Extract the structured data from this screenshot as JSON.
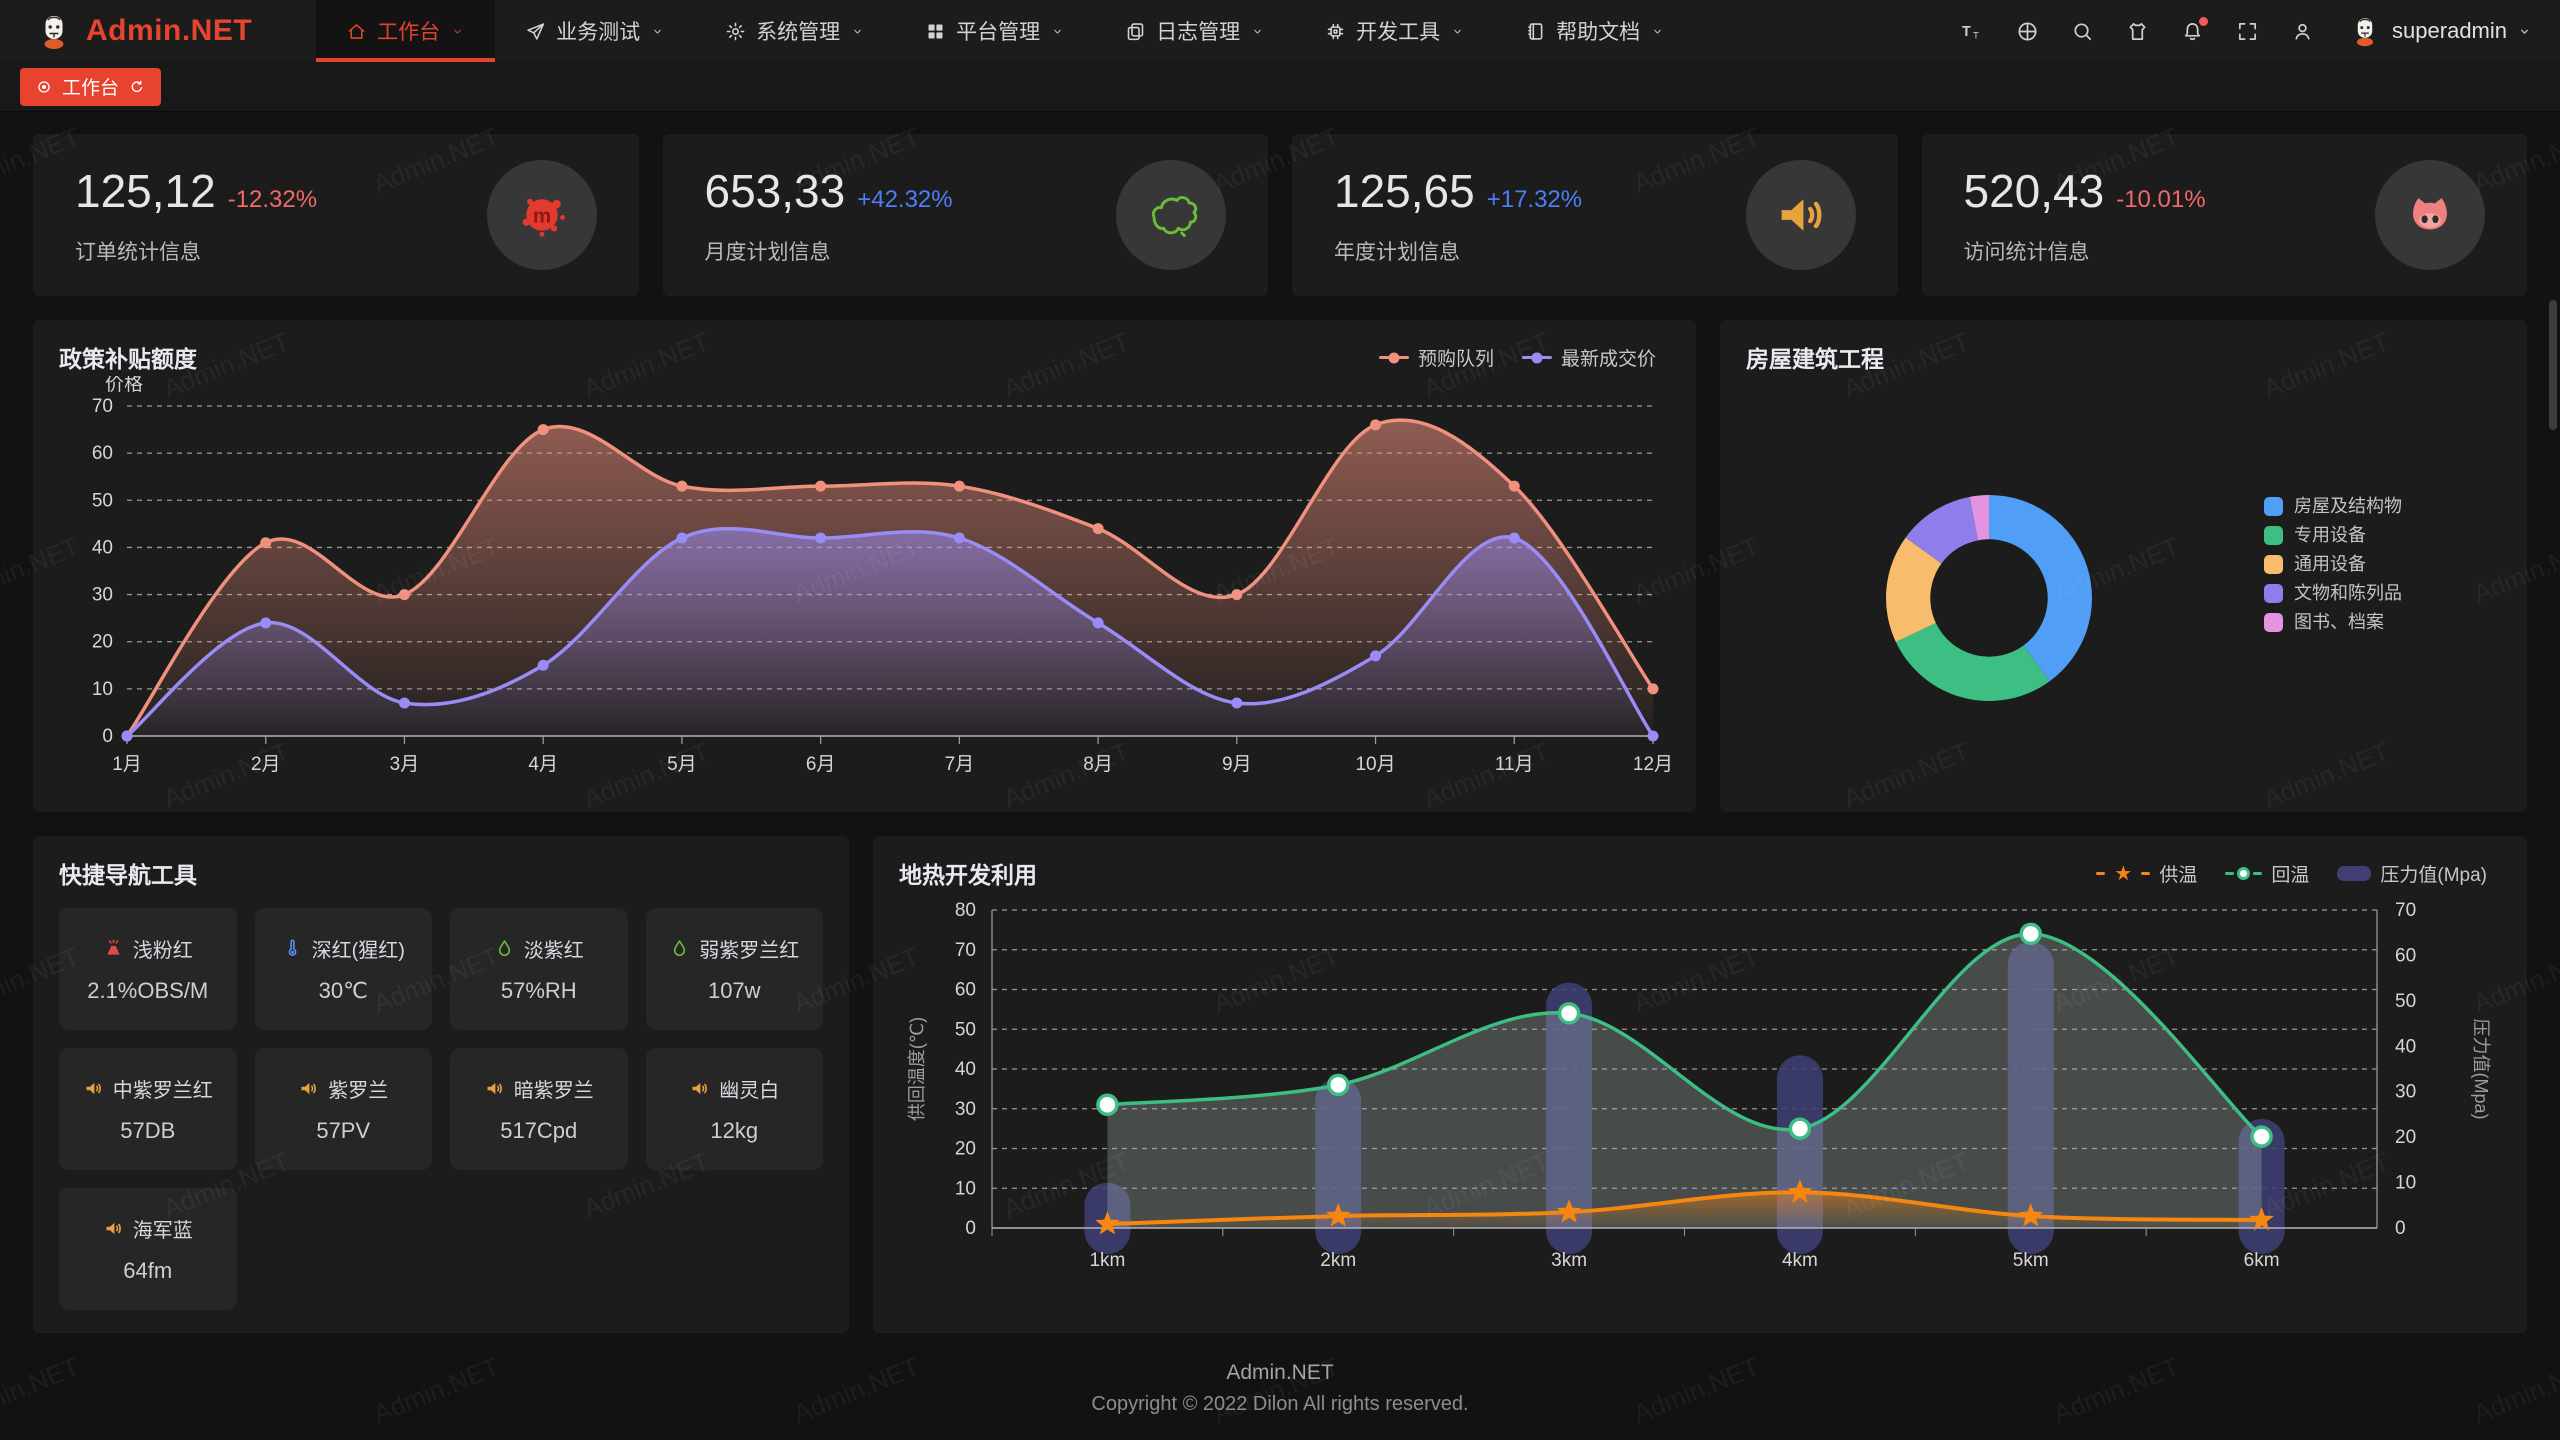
{
  "navbar": {
    "logo_text": "Admin.NET",
    "menus": [
      {
        "label": "工作台",
        "icon": "home-icon",
        "active": true
      },
      {
        "label": "业务测试",
        "icon": "send-icon",
        "active": false
      },
      {
        "label": "系统管理",
        "icon": "gear-icon",
        "active": false
      },
      {
        "label": "平台管理",
        "icon": "grid-icon",
        "active": false
      },
      {
        "label": "日志管理",
        "icon": "copy-icon",
        "active": false
      },
      {
        "label": "开发工具",
        "icon": "chip-icon",
        "active": false
      },
      {
        "label": "帮助文档",
        "icon": "book-icon",
        "active": false
      }
    ],
    "tools": [
      "font-size-icon",
      "globe-icon",
      "search-icon",
      "shirt-icon",
      "bell-icon",
      "fullscreen-icon",
      "user-icon"
    ],
    "user": {
      "name": "superadmin"
    }
  },
  "tabbar": {
    "tabs": [
      {
        "label": "工作台",
        "active": true
      }
    ]
  },
  "stat_cards": [
    {
      "value": "125,12",
      "delta": "-12.32%",
      "delta_color": "#ef6a6a",
      "label": "订单统计信息",
      "icon": "meetup-icon"
    },
    {
      "value": "653,33",
      "delta": "+42.32%",
      "delta_color": "#4d7ef7",
      "label": "月度计划信息",
      "icon": "china-map-icon"
    },
    {
      "value": "125,65",
      "delta": "+17.32%",
      "delta_color": "#4d7ef7",
      "label": "年度计划信息",
      "icon": "speaker-badge-icon"
    },
    {
      "value": "520,43",
      "delta": "-10.01%",
      "delta_color": "#ef6a6a",
      "label": "访问统计信息",
      "icon": "cat-icon"
    }
  ],
  "chart_data": [
    {
      "type": "line",
      "title": "政策补贴额度",
      "ylabel": "价格",
      "ylim": [
        0,
        70
      ],
      "ytick_step": 10,
      "grid": "dashed",
      "legend_position": "top-right",
      "categories": [
        "1月",
        "2月",
        "3月",
        "4月",
        "5月",
        "6月",
        "7月",
        "8月",
        "9月",
        "10月",
        "11月",
        "12月"
      ],
      "series": [
        {
          "name": "预购队列",
          "color": "#f0917e",
          "values": [
            0,
            41,
            30,
            65,
            53,
            53,
            53,
            44,
            30,
            66,
            53,
            10
          ]
        },
        {
          "name": "最新成交价",
          "color": "#9a8cf5",
          "values": [
            0,
            24,
            7,
            15,
            42,
            42,
            42,
            24,
            7,
            17,
            42,
            0
          ]
        }
      ]
    },
    {
      "type": "pie",
      "title": "房屋建筑工程",
      "labels": [
        "房屋及结构物",
        "专用设备",
        "通用设备",
        "文物和陈列品",
        "图书、档案"
      ],
      "values": [
        40,
        28,
        17,
        12,
        3
      ],
      "colors": [
        "#509ef5",
        "#3dbe82",
        "#f7bc6c",
        "#8f7deb",
        "#e393e0"
      ],
      "inner_radius_ratio": 0.57,
      "legend_position": "right"
    },
    {
      "type": "combo",
      "title": "地热开发利用",
      "categories": [
        "1km",
        "2km",
        "3km",
        "4km",
        "5km",
        "6km"
      ],
      "left_axis": {
        "label": "供回温度(℃)",
        "lim": [
          0,
          80
        ],
        "step": 10
      },
      "right_axis": {
        "label": "压力值(Mpa)",
        "lim": [
          0,
          70
        ],
        "step": 10
      },
      "grid": "dashed",
      "legend_position": "top-right",
      "series": [
        {
          "name": "供温",
          "type": "line",
          "marker": "star",
          "axis": "left",
          "color": "#f5860f",
          "values": [
            1,
            3,
            4,
            9,
            3,
            2
          ]
        },
        {
          "name": "回温",
          "type": "line",
          "marker": "circle",
          "axis": "left",
          "color": "#3dbe82",
          "values": [
            31,
            36,
            54,
            25,
            74,
            23
          ]
        },
        {
          "name": "压力值(Mpa)",
          "type": "bar",
          "axis": "right",
          "color": "#3f3f73",
          "values": [
            10,
            33,
            54,
            38,
            63,
            24
          ]
        }
      ]
    }
  ],
  "quick_nav": {
    "title": "快捷导航工具",
    "items": [
      {
        "icon": "volcano-icon",
        "icon_color": "#e04c43",
        "label": "浅粉红",
        "value": "2.1%OBS/M"
      },
      {
        "icon": "thermometer-icon",
        "icon_color": "#5b8ff9",
        "label": "深红(猩红)",
        "value": "30℃"
      },
      {
        "icon": "drop-icon",
        "icon_color": "#6abe39",
        "label": "淡紫红",
        "value": "57%RH"
      },
      {
        "icon": "drop-icon",
        "icon_color": "#6abe39",
        "label": "弱紫罗兰红",
        "value": "107w"
      },
      {
        "icon": "speaker-icon",
        "icon_color": "#e6a23c",
        "label": "中紫罗兰红",
        "value": "57DB"
      },
      {
        "icon": "speaker-icon",
        "icon_color": "#e6a23c",
        "label": "紫罗兰",
        "value": "57PV"
      },
      {
        "icon": "speaker-icon",
        "icon_color": "#e6a23c",
        "label": "暗紫罗兰",
        "value": "517Cpd"
      },
      {
        "icon": "speaker-icon",
        "icon_color": "#e6a23c",
        "label": "幽灵白",
        "value": "12kg"
      },
      {
        "icon": "speaker-icon",
        "icon_color": "#e6a23c",
        "label": "海军蓝",
        "value": "64fm"
      }
    ]
  },
  "footer": {
    "line1": "Admin.NET",
    "line2": "Copyright © 2022 Dilon All rights reserved."
  },
  "watermark": "Admin.NET",
  "colors": {
    "accent": "#e3432c",
    "card_bg": "#1c1c1c",
    "page_bg": "#121212",
    "delta_up": "#4d7ef7",
    "delta_down": "#ef6a6a"
  }
}
